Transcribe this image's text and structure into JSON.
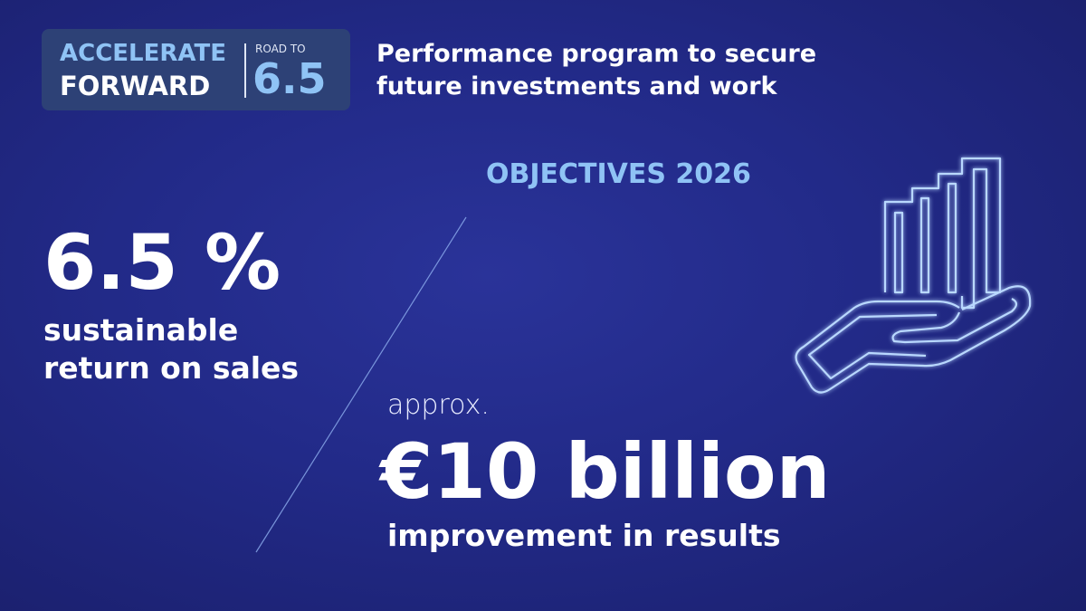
{
  "logo": {
    "line1": "ACCELERATE",
    "line2": "FORWARD",
    "road": "ROAD TO",
    "number": "6.5"
  },
  "headline": "Performance program to secure future investments and work",
  "objectives_label": "OBJECTIVES 2026",
  "metric1": {
    "value": "6.5 %",
    "caption": "sustainable return on sales"
  },
  "metric2": {
    "prefix": "approx.",
    "value": "€10 billion",
    "caption": "improvement in results"
  },
  "colors": {
    "accent": "#8fc3f5",
    "background": "#222a88",
    "logo_bg": "#2d4176"
  },
  "icon": "hand-holding-growth-chart-icon"
}
